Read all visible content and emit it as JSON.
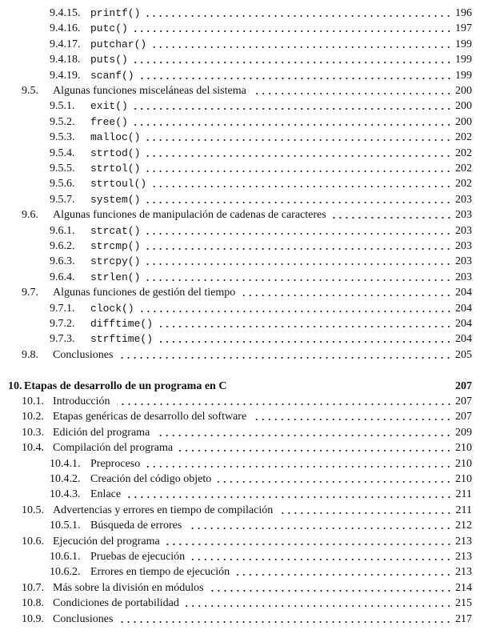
{
  "entries": [
    {
      "number": "9.4.15.",
      "title": "printf()",
      "page": "196"
    },
    {
      "number": "9.4.16.",
      "title": "putc()",
      "page": "197"
    },
    {
      "number": "9.4.17.",
      "title": "putchar()",
      "page": "199"
    },
    {
      "number": "9.4.18.",
      "title": "puts()",
      "page": "199"
    },
    {
      "number": "9.4.19.",
      "title": "scanf()",
      "page": "199"
    },
    {
      "number": "9.5.",
      "title": "Algunas funciones misceláneas del sistema",
      "page": "200"
    },
    {
      "number": "9.5.1.",
      "title": "exit()",
      "page": "200"
    },
    {
      "number": "9.5.2.",
      "title": "free()",
      "page": "200"
    },
    {
      "number": "9.5.3.",
      "title": "malloc()",
      "page": "202"
    },
    {
      "number": "9.5.4.",
      "title": "strtod()",
      "page": "202"
    },
    {
      "number": "9.5.5.",
      "title": "strtol()",
      "page": "202"
    },
    {
      "number": "9.5.6.",
      "title": "strtoul()",
      "page": "202"
    },
    {
      "number": "9.5.7.",
      "title": "system()",
      "page": "203"
    },
    {
      "number": "9.6.",
      "title": "Algunas funciones de manipulación de cadenas de caracteres",
      "page": "203"
    },
    {
      "number": "9.6.1.",
      "title": "strcat()",
      "page": "203"
    },
    {
      "number": "9.6.2.",
      "title": "strcmp()",
      "page": "203"
    },
    {
      "number": "9.6.3.",
      "title": "strcpy()",
      "page": "203"
    },
    {
      "number": "9.6.4.",
      "title": "strlen()",
      "page": "203"
    },
    {
      "number": "9.7.",
      "title": "Algunas funciones de gestión del tiempo",
      "page": "204"
    },
    {
      "number": "9.7.1.",
      "title": "clock()",
      "page": "204"
    },
    {
      "number": "9.7.2.",
      "title": "difftime()",
      "page": "204"
    },
    {
      "number": "9.7.3.",
      "title": "strftime()",
      "page": "204"
    },
    {
      "number": "9.8.",
      "title": "Conclusiones",
      "page": "205"
    },
    {
      "number": "10.",
      "title": "Etapas de desarrollo de un programa en C",
      "page": "207"
    },
    {
      "number": "10.1.",
      "title": "Introducción",
      "page": "207"
    },
    {
      "number": "10.2.",
      "title": "Etapas genéricas de desarrollo del software",
      "page": "207"
    },
    {
      "number": "10.3.",
      "title": "Edición del programa",
      "page": "209"
    },
    {
      "number": "10.4.",
      "title": "Compilación del programa",
      "page": "210"
    },
    {
      "number": "10.4.1.",
      "title": "Preproceso",
      "page": "210"
    },
    {
      "number": "10.4.2.",
      "title": "Creación del código objeto",
      "page": "210"
    },
    {
      "number": "10.4.3.",
      "title": "Enlace",
      "page": "211"
    },
    {
      "number": "10.5.",
      "title": "Advertencias y errores en tiempo de compilación",
      "page": "211"
    },
    {
      "number": "10.5.1.",
      "title": "Búsqueda de errores",
      "page": "212"
    },
    {
      "number": "10.6.",
      "title": "Ejecución del programa",
      "page": "213"
    },
    {
      "number": "10.6.1.",
      "title": "Pruebas de ejecución",
      "page": "213"
    },
    {
      "number": "10.6.2.",
      "title": "Errores en tiempo de ejecución",
      "page": "213"
    },
    {
      "number": "10.7.",
      "title": "Más sobre la división en módulos",
      "page": "214"
    },
    {
      "number": "10.8.",
      "title": "Condiciones de portabilidad",
      "page": "215"
    },
    {
      "number": "10.9.",
      "title": "Conclusiones",
      "page": "217"
    }
  ]
}
